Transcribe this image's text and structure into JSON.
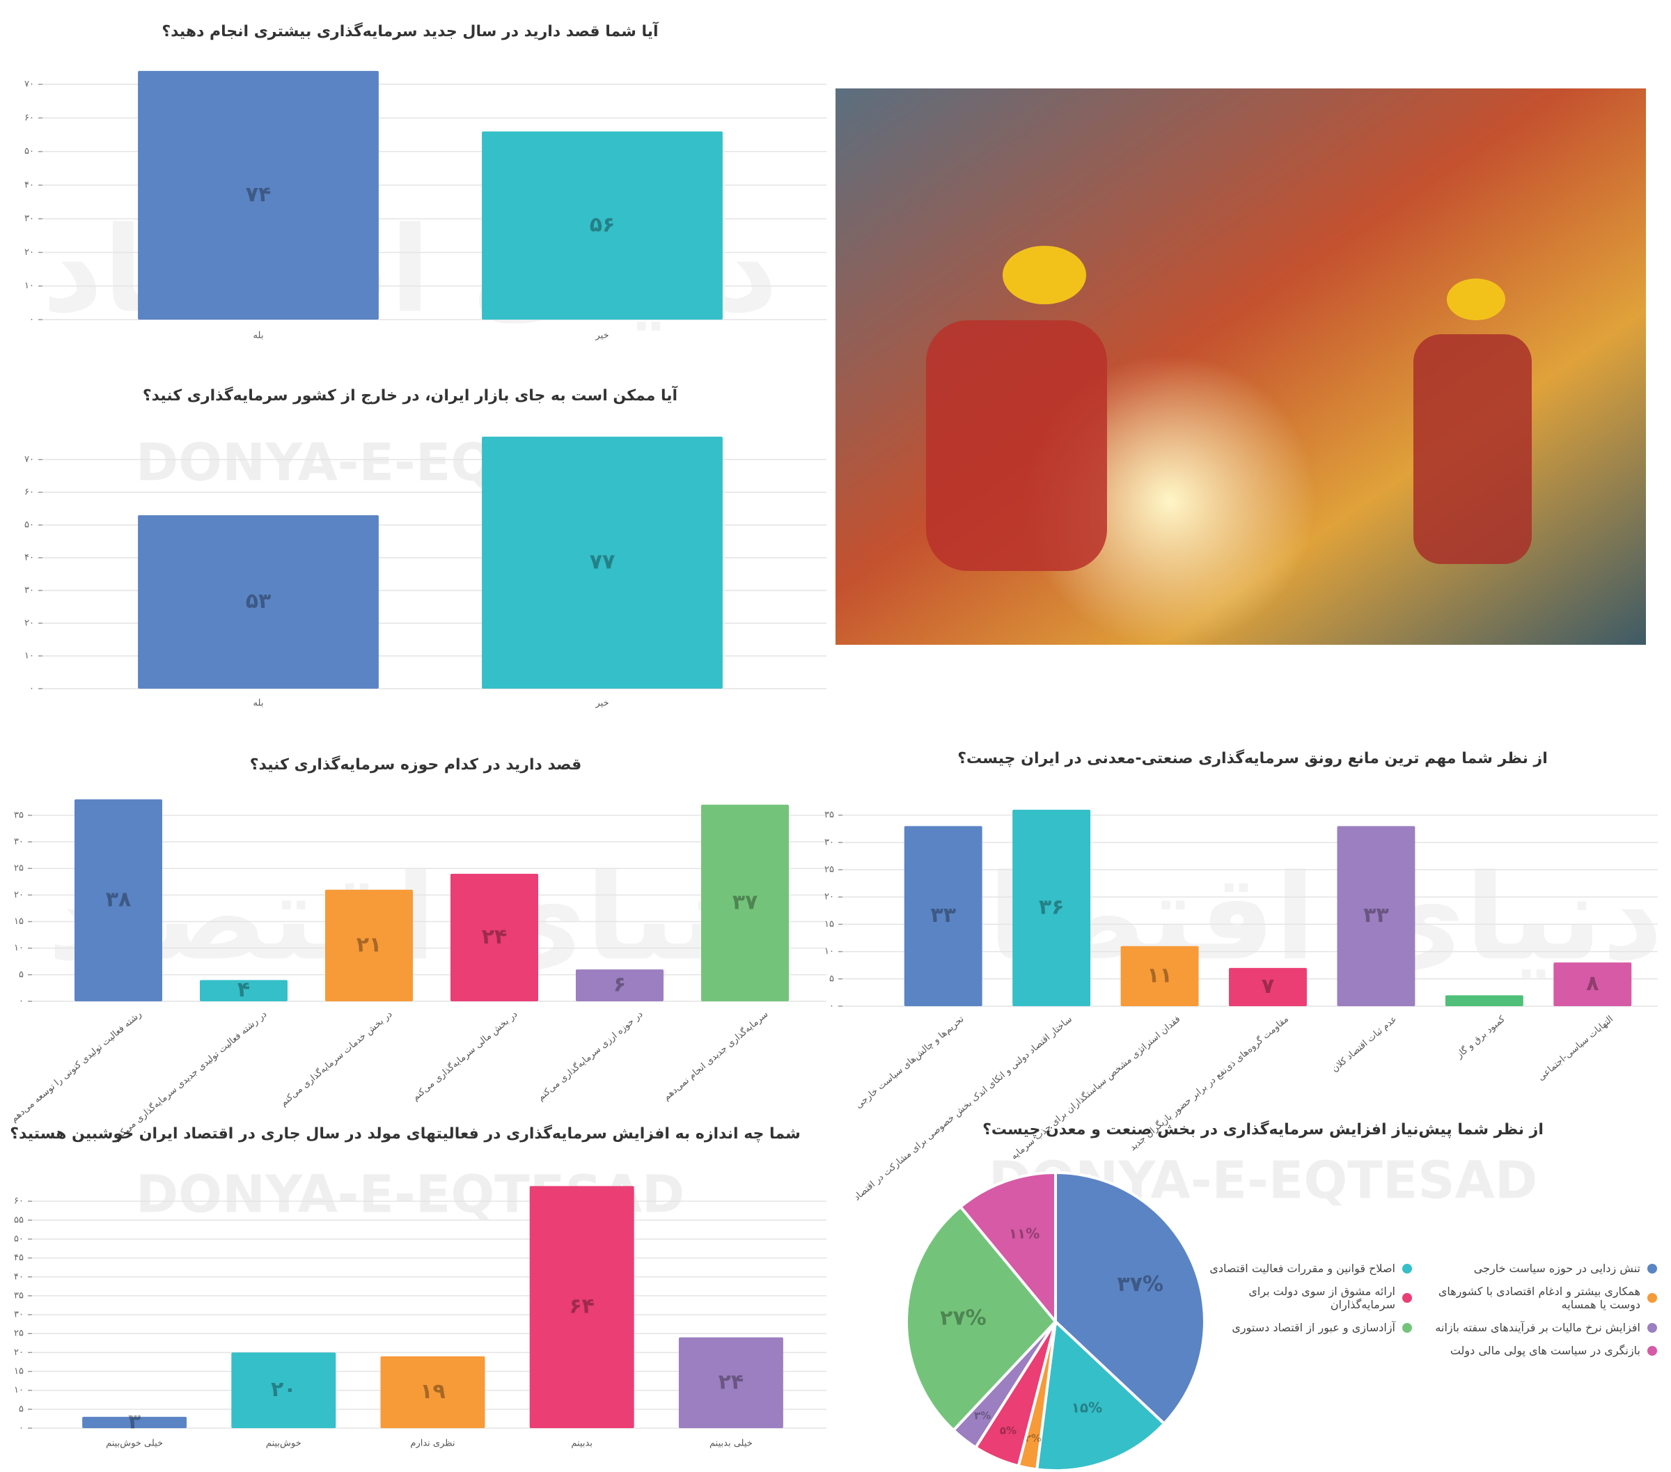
{
  "watermark": "DONYA-E-EQTESAD",
  "watermark_fa": "دنیای اقتصاد",
  "chart_data": [
    {
      "type": "bar",
      "title": "آیا شما قصد دارید در سال جدید سرمایه‌گذاری بیشتری انجام دهید؟",
      "categories": [
        "بله",
        "خیر"
      ],
      "values": [
        74,
        56
      ],
      "value_labels": [
        "۷۴",
        "۵۶"
      ],
      "colors": [
        "#5b84c4",
        "#35bfc8"
      ],
      "ylim": [
        0,
        75
      ],
      "yticks": [
        {
          "value": 0,
          "label": "۰"
        },
        {
          "value": 10,
          "label": "۱۰"
        },
        {
          "value": 20,
          "label": "۲۰"
        },
        {
          "value": 30,
          "label": "۳۰"
        },
        {
          "value": 40,
          "label": "۴۰"
        },
        {
          "value": 50,
          "label": "۵۰"
        },
        {
          "value": 60,
          "label": "۶۰"
        },
        {
          "value": 70,
          "label": "۷۰"
        }
      ],
      "grid": true
    },
    {
      "type": "bar",
      "title": "آیا ممکن است به جای بازار ایران، در خارج از کشور سرمایه‌گذاری کنید؟",
      "categories": [
        "بله",
        "خیر"
      ],
      "values": [
        53,
        77
      ],
      "value_labels": [
        "۵۳",
        "۷۷"
      ],
      "colors": [
        "#5b84c4",
        "#35bfc8"
      ],
      "ylim": [
        0,
        80
      ],
      "yticks": [
        {
          "value": 0,
          "label": "۰"
        },
        {
          "value": 10,
          "label": "۱۰"
        },
        {
          "value": 20,
          "label": "۲۰"
        },
        {
          "value": 30,
          "label": "۳۰"
        },
        {
          "value": 40,
          "label": "۴۰"
        },
        {
          "value": 50,
          "label": "۵۰"
        },
        {
          "value": 60,
          "label": "۶۰"
        },
        {
          "value": 70,
          "label": "۷۰"
        }
      ],
      "grid": true
    },
    {
      "type": "bar",
      "title": "قصد دارید در کدام حوزه سرمایه‌گذاری کنید؟",
      "categories": [
        "رشته فعالیت تولیدی کنونی را توسعه می‌دهم",
        "در رشته فعالیت تولیدی جدیدی سرمایه‌گذاری می‌کنم",
        "در بخش خدمات سرمایه‌گذاری می‌کنم",
        "در بخش مالی سرمایه‌گذاری می‌کنم",
        "در حوزه ارزی سرمایه‌گذاری می‌کنم",
        "سرمایه‌گذاری جدیدی انجام نمی‌دهم"
      ],
      "values": [
        38,
        4,
        21,
        24,
        6,
        37
      ],
      "value_labels": [
        "۳۸",
        "۴",
        "۲۱",
        "۲۴",
        "۶",
        "۳۷"
      ],
      "colors": [
        "#5b84c4",
        "#35bfc8",
        "#f79a38",
        "#ea3e74",
        "#9b7fc0",
        "#73c47a"
      ],
      "ylim": [
        0,
        38
      ],
      "yticks": [
        {
          "value": 0,
          "label": "۰"
        },
        {
          "value": 5,
          "label": "۵"
        },
        {
          "value": 10,
          "label": "۱۰"
        },
        {
          "value": 15,
          "label": "۱۵"
        },
        {
          "value": 20,
          "label": "۲۰"
        },
        {
          "value": 25,
          "label": "۲۵"
        },
        {
          "value": 30,
          "label": "۳۰"
        },
        {
          "value": 35,
          "label": "۳۵"
        }
      ],
      "grid": true
    },
    {
      "type": "bar",
      "title": "از نظر شما مهم ترین مانع رونق سرمایه‌گذاری صنعتی-معدنی در ایران چیست؟",
      "categories": [
        "تحریم‌ها و چالش‌های سیاست خارجی",
        "ساختار اقتصاد دولتی و اتکای اندک بخش خصوصی برای مشارکت در اقتصاد",
        "فقدان استراتژی مشخص سیاستگذاران برای جذب سرمایه",
        "مقاومت گروه‌های ذی‌نفع در برابر حضور بازیگران جدید",
        "عدم ثبات اقتصاد کلان",
        "کمبود برق و گاز",
        "التهابات سیاسی-اجتماعی"
      ],
      "values": [
        33,
        36,
        11,
        7,
        33,
        2,
        8
      ],
      "value_labels": [
        "۳۳",
        "۳۶",
        "۱۱",
        "۷",
        "۳۳",
        null,
        "۸"
      ],
      "colors": [
        "#5b84c4",
        "#35bfc8",
        "#f79a38",
        "#ea3e74",
        "#9b7fc0",
        "#4fbf7a",
        "#d65aa6"
      ],
      "ylim": [
        0,
        37
      ],
      "yticks": [
        {
          "value": 0,
          "label": "۰"
        },
        {
          "value": 5,
          "label": "۵"
        },
        {
          "value": 10,
          "label": "۱۰"
        },
        {
          "value": 15,
          "label": "۱۵"
        },
        {
          "value": 20,
          "label": "۲۰"
        },
        {
          "value": 25,
          "label": "۲۵"
        },
        {
          "value": 30,
          "label": "۳۰"
        },
        {
          "value": 35,
          "label": "۳۵"
        }
      ],
      "grid": true
    },
    {
      "type": "bar",
      "title": "شما چه اندازه به افزایش سرمایه‌گذاری در فعالیتهای مولد در سال جاری در اقتصاد ایران خوشبین هستید؟",
      "categories": [
        "خیلی خوش‌بینم",
        "خوش‌بینم",
        "نظری ندارم",
        "بدبینم",
        "خیلی بدبینم"
      ],
      "values": [
        3,
        20,
        19,
        64,
        24
      ],
      "value_labels": [
        "۳",
        "۲۰",
        "۱۹",
        "۶۴",
        "۲۴"
      ],
      "colors": [
        "#5b84c4",
        "#35bfc8",
        "#f79a38",
        "#ea3e74",
        "#9b7fc0"
      ],
      "ylim": [
        0,
        65
      ],
      "yticks": [
        {
          "value": 0,
          "label": "۰"
        },
        {
          "value": 5,
          "label": "۵"
        },
        {
          "value": 10,
          "label": "۱۰"
        },
        {
          "value": 15,
          "label": "۱۵"
        },
        {
          "value": 20,
          "label": "۲۰"
        },
        {
          "value": 25,
          "label": "۲۵"
        },
        {
          "value": 30,
          "label": "۳۰"
        },
        {
          "value": 35,
          "label": "۳۵"
        },
        {
          "value": 40,
          "label": "۴۰"
        },
        {
          "value": 45,
          "label": "۴۵"
        },
        {
          "value": 50,
          "label": "۵۰"
        },
        {
          "value": 55,
          "label": "۵۵"
        },
        {
          "value": 60,
          "label": "۶۰"
        }
      ],
      "grid": true
    },
    {
      "type": "pie",
      "title": "از نظر شما پیش‌نیاز افزایش سرمایه‌گذاری در بخش صنعت و معدن چیست؟",
      "categories": [
        "تنش زدایی در حوزه سیاست خارجی",
        "اصلاح قوانین و مقررات فعالیت اقتصادی",
        "همکاری بیشتر و ادغام اقتصادی با کشورهای دوست یا همسایه",
        "ارائه مشوق از سوی دولت برای سرمایه‌گذاران",
        "افزایش نرخ مالیات بر فرآیندهای سفته بازانه",
        "آزادسازی و عبور از اقتصاد دستوری",
        "بازنگری در سیاست های پولی مالی دولت"
      ],
      "values": [
        37,
        15,
        2,
        5,
        3,
        27,
        11
      ],
      "value_labels": [
        "۳۷%",
        "۱۵%",
        "۲%",
        "۵%",
        "۳%",
        "۲۷%",
        "۱۱%"
      ],
      "colors": [
        "#5b84c4",
        "#35bfc8",
        "#f79a38",
        "#ea3e74",
        "#9b7fc0",
        "#73c47a",
        "#d65aa6"
      ],
      "legend": "right"
    }
  ]
}
